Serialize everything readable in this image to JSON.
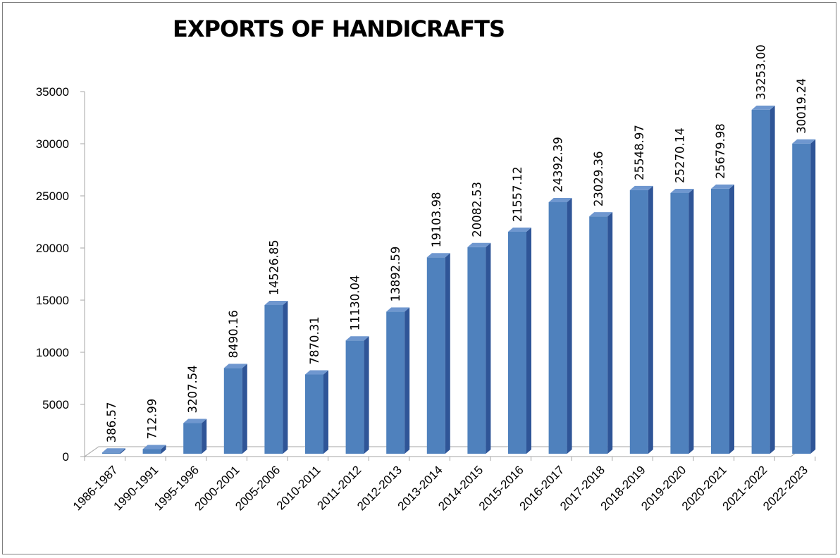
{
  "chart_data": {
    "type": "bar",
    "title": "EXPORTS OF HANDICRAFTS",
    "xlabel": "",
    "ylabel": "",
    "ylim": [
      0,
      35000
    ],
    "yticks": [
      0,
      5000,
      10000,
      15000,
      20000,
      25000,
      30000,
      35000
    ],
    "grid": false,
    "legend": "none",
    "style": "3d-column",
    "bar_color": "#4f81bd",
    "categories": [
      "1986-1987",
      "1990-1991",
      "1995-1996",
      "2000-2001",
      "2005-2006",
      "2010-2011",
      "2011-2012",
      "2012-2013",
      "2013-2014",
      "2014-2015",
      "2015-2016",
      "2016-2017",
      "2017-2018",
      "2018-2019",
      "2019-2020",
      "2020-2021",
      "2021-2022",
      "2022-2023"
    ],
    "values": [
      386.57,
      712.99,
      3207.54,
      8490.16,
      14526.85,
      7870.31,
      11130.04,
      13892.59,
      19103.98,
      20082.53,
      21557.12,
      24392.39,
      23029.36,
      25548.97,
      25270.14,
      25679.98,
      33253.0,
      30019.24
    ],
    "data_labels": [
      "386.57",
      "712.99",
      "3207.54",
      "8490.16",
      "14526.85",
      "7870.31",
      "11130.04",
      "13892.59",
      "19103.98",
      "20082.53",
      "21557.12",
      "24392.39",
      "23029.36",
      "25548.97",
      "25270.14",
      "25679.98",
      "33253.00",
      "30019.24"
    ]
  }
}
